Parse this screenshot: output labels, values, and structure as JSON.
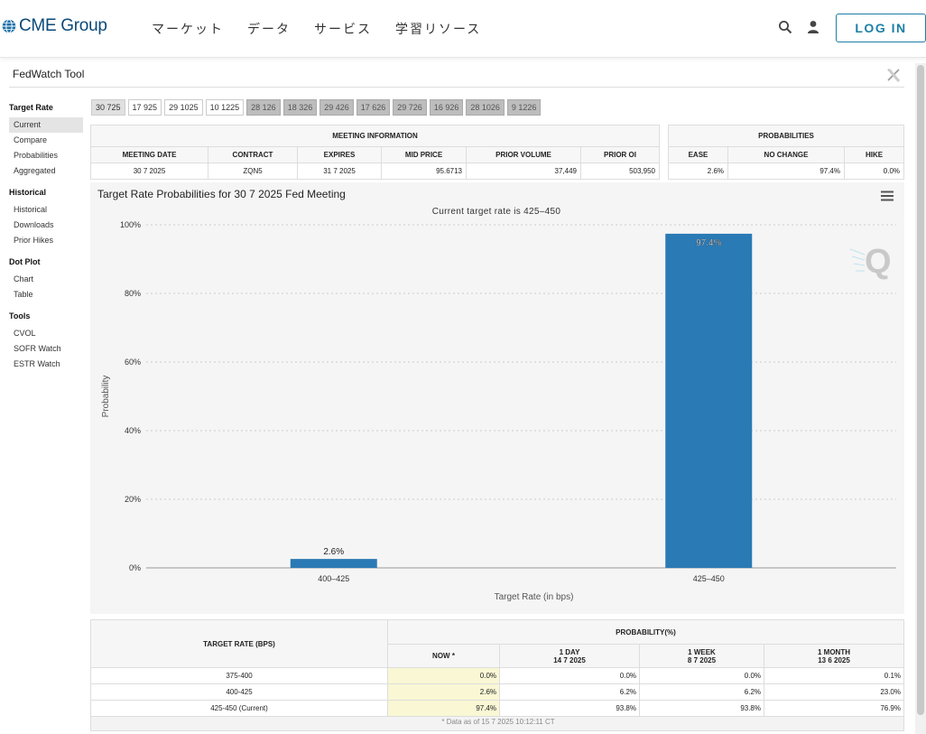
{
  "header": {
    "logo_text": "CME Group",
    "nav": [
      "マーケット",
      "データ",
      "サービス",
      "学習リソース"
    ],
    "login_label": "LOG IN"
  },
  "tool": {
    "title": "FedWatch Tool"
  },
  "sidebar": {
    "sections": [
      {
        "heading": "Target Rate",
        "items": [
          "Current",
          "Compare",
          "Probabilities",
          "Aggregated"
        ]
      },
      {
        "heading": "Historical",
        "items": [
          "Historical",
          "Downloads",
          "Prior Hikes"
        ]
      },
      {
        "heading": "Dot Plot",
        "items": [
          "Chart",
          "Table"
        ]
      },
      {
        "heading": "Tools",
        "items": [
          "CVOL",
          "SOFR Watch",
          "ESTR Watch"
        ]
      }
    ],
    "active_item": "Current"
  },
  "tabs": [
    "30 725",
    "17 925",
    "29 1025",
    "10 1225",
    "28 126",
    "18 326",
    "29 426",
    "17 626",
    "29 726",
    "16 926",
    "28 1026",
    "9 1226"
  ],
  "meeting_info": {
    "title": "MEETING INFORMATION",
    "headers": [
      "MEETING DATE",
      "CONTRACT",
      "EXPIRES",
      "MID PRICE",
      "PRIOR VOLUME",
      "PRIOR OI"
    ],
    "row": [
      "30 7 2025",
      "ZQN5",
      "31 7 2025",
      "95.6713",
      "37,449",
      "503,950"
    ]
  },
  "probabilities": {
    "title": "PROBABILITIES",
    "headers": [
      "EASE",
      "NO CHANGE",
      "HIKE"
    ],
    "row": [
      "2.6%",
      "97.4%",
      "0.0%"
    ]
  },
  "chart": {
    "title": "Target Rate Probabilities for 30 7 2025 Fed Meeting",
    "subtitle": "Current target rate is 425–450"
  },
  "chart_data": {
    "type": "bar",
    "categories": [
      "400–425",
      "425–450"
    ],
    "values": [
      2.6,
      97.4
    ],
    "data_labels": [
      "2.6%",
      "97.4%"
    ],
    "xlabel": "Target Rate (in bps)",
    "ylabel": "Probability",
    "ylim": [
      0,
      100
    ],
    "yticks": [
      "0%",
      "20%",
      "40%",
      "60%",
      "80%",
      "100%"
    ],
    "grid": true,
    "bar_color": "#2a7ab5"
  },
  "bottom_table": {
    "col0_header": "TARGET RATE (BPS)",
    "prob_header": "PROBABILITY(%)",
    "sub_headers": [
      {
        "line1": "NOW *",
        "line2": ""
      },
      {
        "line1": "1 DAY",
        "line2": "14 7 2025"
      },
      {
        "line1": "1 WEEK",
        "line2": "8 7 2025"
      },
      {
        "line1": "1 MONTH",
        "line2": "13 6 2025"
      }
    ],
    "rows": [
      [
        "375-400",
        "0.0%",
        "0.0%",
        "0.0%",
        "0.1%"
      ],
      [
        "400-425",
        "2.6%",
        "6.2%",
        "6.2%",
        "23.0%"
      ],
      [
        "425-450 (Current)",
        "97.4%",
        "93.8%",
        "93.8%",
        "76.9%"
      ]
    ],
    "footnote": "* Data as of 15 7 2025 10:12:11 CT"
  }
}
